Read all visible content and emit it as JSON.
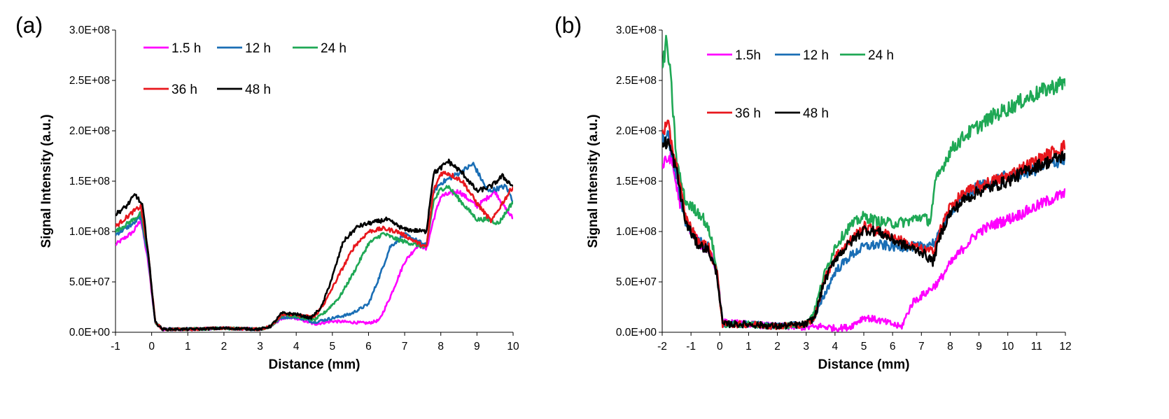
{
  "chart_data": [
    {
      "panel_label": "(a)",
      "type": "line",
      "xlabel": "Distance (mm)",
      "ylabel": "Signal Intensity (a.u.)",
      "xlim": [
        -1,
        10
      ],
      "ylim": [
        0,
        300000000
      ],
      "xticks": [
        "-1",
        "0",
        "1",
        "2",
        "3",
        "4",
        "5",
        "6",
        "7",
        "8",
        "9",
        "10"
      ],
      "yticks": [
        "0.0E+00",
        "5.0E+07",
        "1.0E+08",
        "1.5E+08",
        "2.0E+08",
        "2.5E+08",
        "3.0E+08"
      ],
      "grid": false,
      "legend_position": "top-left",
      "series": [
        {
          "name": "1.5 h",
          "color": "#ff00ff",
          "x": [
            -1,
            -0.5,
            -0.3,
            -0.1,
            0.1,
            0.3,
            1,
            2,
            3,
            3.3,
            3.6,
            4,
            4.5,
            5,
            5.5,
            6,
            6.3,
            6.6,
            7,
            7.4,
            7.6,
            7.8,
            8,
            8.5,
            9,
            9.5,
            9.8,
            10
          ],
          "y": [
            87000000,
            100000000,
            112000000,
            70000000,
            10000000,
            3000000,
            3000000,
            4000000,
            3000000,
            6000000,
            14000000,
            14000000,
            8000000,
            11000000,
            10000000,
            9000000,
            12000000,
            35000000,
            70000000,
            88000000,
            82000000,
            112000000,
            135000000,
            140000000,
            125000000,
            140000000,
            122000000,
            113000000
          ]
        },
        {
          "name": "12 h",
          "color": "#1a6eb5",
          "x": [
            -1,
            -0.5,
            -0.3,
            -0.1,
            0.1,
            0.3,
            1,
            2,
            3,
            3.3,
            3.6,
            4,
            4.5,
            5,
            5.5,
            6,
            6.3,
            6.6,
            7,
            7.4,
            7.6,
            7.8,
            8,
            8.5,
            8.9,
            9.3,
            9.8,
            10
          ],
          "y": [
            97000000,
            108000000,
            115000000,
            75000000,
            10000000,
            3000000,
            3000000,
            4000000,
            3000000,
            6000000,
            15000000,
            15000000,
            10000000,
            14000000,
            18000000,
            28000000,
            55000000,
            85000000,
            97000000,
            90000000,
            86000000,
            140000000,
            148000000,
            158000000,
            167000000,
            140000000,
            145000000,
            130000000
          ]
        },
        {
          "name": "24 h",
          "color": "#1fa855",
          "x": [
            -1,
            -0.5,
            -0.3,
            -0.1,
            0.1,
            0.3,
            1,
            2,
            3,
            3.3,
            3.6,
            4,
            4.5,
            4.8,
            5.2,
            5.6,
            6,
            6.4,
            6.8,
            7.2,
            7.6,
            7.8,
            8,
            8.2,
            8.6,
            9,
            9.3,
            9.6,
            10
          ],
          "y": [
            100000000,
            112000000,
            118000000,
            78000000,
            10000000,
            3000000,
            3000000,
            4000000,
            3000000,
            6000000,
            17000000,
            16000000,
            12000000,
            20000000,
            35000000,
            60000000,
            88000000,
            98000000,
            92000000,
            88000000,
            84000000,
            130000000,
            142000000,
            145000000,
            128000000,
            112000000,
            112000000,
            108000000,
            130000000
          ]
        },
        {
          "name": "36 h",
          "color": "#e8171d",
          "x": [
            -1,
            -0.5,
            -0.3,
            -0.1,
            0.1,
            0.3,
            1,
            2,
            3,
            3.3,
            3.6,
            4,
            4.5,
            4.8,
            5.2,
            5.6,
            6,
            6.4,
            6.8,
            7.2,
            7.6,
            7.8,
            8,
            8.2,
            8.6,
            9,
            9.4,
            9.7,
            10
          ],
          "y": [
            105000000,
            120000000,
            125000000,
            80000000,
            10000000,
            3000000,
            3000000,
            4000000,
            3000000,
            6000000,
            18000000,
            17000000,
            15000000,
            30000000,
            58000000,
            85000000,
            100000000,
            103000000,
            100000000,
            92000000,
            84000000,
            140000000,
            158000000,
            158000000,
            150000000,
            128000000,
            110000000,
            128000000,
            145000000
          ]
        },
        {
          "name": "48 h",
          "color": "#000000",
          "x": [
            -1,
            -0.7,
            -0.45,
            -0.25,
            -0.1,
            0.1,
            0.3,
            1,
            2,
            3,
            3.3,
            3.6,
            4,
            4.4,
            4.7,
            5,
            5.3,
            5.7,
            6,
            6.5,
            7,
            7.6,
            7.8,
            8,
            8.2,
            8.6,
            9,
            9.4,
            9.7,
            10
          ],
          "y": [
            117000000,
            125000000,
            137000000,
            125000000,
            80000000,
            10000000,
            3000000,
            3000000,
            4000000,
            3000000,
            6000000,
            19000000,
            18000000,
            14000000,
            25000000,
            55000000,
            90000000,
            105000000,
            108000000,
            112000000,
            102000000,
            100000000,
            158000000,
            163000000,
            170000000,
            158000000,
            140000000,
            145000000,
            155000000,
            145000000
          ]
        }
      ]
    },
    {
      "panel_label": "(b)",
      "type": "line",
      "xlabel": "Distance (mm)",
      "ylabel": "Signal Intensity (a.u.)",
      "xlim": [
        -2,
        12
      ],
      "ylim": [
        0,
        300000000
      ],
      "xticks": [
        "-2",
        "-1",
        "0",
        "1",
        "2",
        "3",
        "4",
        "5",
        "6",
        "7",
        "8",
        "9",
        "10",
        "11",
        "12"
      ],
      "yticks": [
        "0.0E+00",
        "5.0E+07",
        "1.0E+08",
        "1.5E+08",
        "2.0E+08",
        "2.5E+08",
        "3.0E+08"
      ],
      "grid": false,
      "legend_position": "top-left",
      "series": [
        {
          "name": "1.5h",
          "color": "#ff00ff",
          "x": [
            -2,
            -1.7,
            -1.4,
            -1,
            -0.6,
            -0.3,
            -0.05,
            0.1,
            1,
            2,
            3,
            3.3,
            3.5,
            4,
            4.5,
            5,
            5.5,
            6,
            6.3,
            6.7,
            7.2,
            7.6,
            8,
            8.5,
            9,
            9.5,
            10,
            10.5,
            11,
            11.5,
            12
          ],
          "y": [
            165000000,
            175000000,
            130000000,
            100000000,
            85000000,
            80000000,
            50000000,
            10000000,
            8000000,
            6000000,
            5000000,
            5000000,
            6000000,
            4000000,
            5000000,
            15000000,
            12000000,
            8000000,
            5000000,
            30000000,
            40000000,
            50000000,
            68000000,
            85000000,
            100000000,
            107000000,
            112000000,
            118000000,
            125000000,
            132000000,
            138000000
          ]
        },
        {
          "name": "12 h",
          "color": "#1a6eb5",
          "x": [
            -2,
            -1.8,
            -1.5,
            -1.2,
            -0.8,
            -0.4,
            -0.1,
            0.1,
            1,
            2,
            3,
            3.3,
            3.6,
            4,
            4.5,
            5,
            5.5,
            6,
            6.5,
            7,
            7.5,
            8,
            8.5,
            9,
            9.5,
            10,
            10.5,
            11,
            11.5,
            12
          ],
          "y": [
            190000000,
            195000000,
            155000000,
            110000000,
            92000000,
            85000000,
            60000000,
            8000000,
            8000000,
            6000000,
            8000000,
            15000000,
            35000000,
            60000000,
            75000000,
            85000000,
            87000000,
            85000000,
            85000000,
            85000000,
            90000000,
            120000000,
            135000000,
            145000000,
            150000000,
            155000000,
            158000000,
            162000000,
            168000000,
            172000000
          ]
        },
        {
          "name": "24 h",
          "color": "#1fa855",
          "x": [
            -2,
            -1.85,
            -1.7,
            -1.5,
            -1.2,
            -1,
            -0.6,
            -0.3,
            -0.1,
            0.1,
            1,
            2,
            3,
            3.3,
            3.6,
            4,
            4.5,
            5,
            5.5,
            6,
            6.5,
            7,
            7.3,
            7.5,
            8,
            8.5,
            9,
            9.5,
            10,
            10.5,
            11,
            11.5,
            12
          ],
          "y": [
            260000000,
            290000000,
            250000000,
            170000000,
            130000000,
            125000000,
            115000000,
            95000000,
            60000000,
            8000000,
            8000000,
            6000000,
            8000000,
            22000000,
            55000000,
            85000000,
            105000000,
            115000000,
            110000000,
            108000000,
            110000000,
            115000000,
            110000000,
            150000000,
            180000000,
            195000000,
            205000000,
            215000000,
            222000000,
            230000000,
            237000000,
            243000000,
            248000000
          ]
        },
        {
          "name": "36 h",
          "color": "#e8171d",
          "x": [
            -2,
            -1.8,
            -1.5,
            -1.2,
            -0.8,
            -0.4,
            -0.1,
            0.1,
            1,
            2,
            3,
            3.3,
            3.6,
            4,
            4.5,
            5,
            5.5,
            6,
            6.5,
            7,
            7.4,
            7.7,
            8,
            8.5,
            9,
            9.5,
            10,
            10.5,
            11,
            11.5,
            12
          ],
          "y": [
            200000000,
            205000000,
            165000000,
            115000000,
            92000000,
            85000000,
            60000000,
            8000000,
            8000000,
            6000000,
            8000000,
            15000000,
            50000000,
            75000000,
            90000000,
            105000000,
            100000000,
            95000000,
            88000000,
            82000000,
            80000000,
            105000000,
            125000000,
            138000000,
            145000000,
            150000000,
            155000000,
            163000000,
            170000000,
            178000000,
            185000000
          ]
        },
        {
          "name": "48 h",
          "color": "#000000",
          "x": [
            -2,
            -1.8,
            -1.5,
            -1.2,
            -0.8,
            -0.4,
            -0.1,
            0.1,
            1,
            2,
            3,
            3.3,
            3.6,
            4,
            4.5,
            5,
            5.5,
            6,
            6.5,
            7,
            7.4,
            7.7,
            8,
            8.5,
            9,
            9.5,
            10,
            10.5,
            11,
            11.5,
            12
          ],
          "y": [
            185000000,
            190000000,
            160000000,
            110000000,
            88000000,
            82000000,
            58000000,
            8000000,
            8000000,
            6000000,
            8000000,
            15000000,
            48000000,
            73000000,
            88000000,
            102000000,
            100000000,
            92000000,
            85000000,
            80000000,
            70000000,
            100000000,
            118000000,
            132000000,
            140000000,
            145000000,
            150000000,
            158000000,
            165000000,
            170000000,
            176000000
          ]
        }
      ]
    }
  ]
}
